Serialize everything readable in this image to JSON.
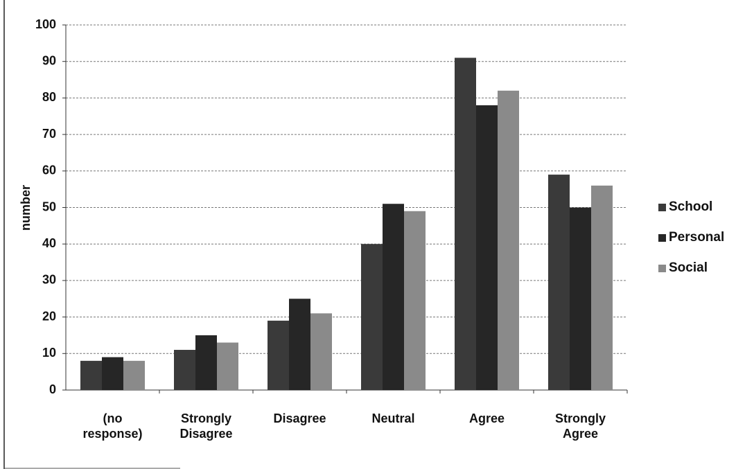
{
  "chart_data": {
    "type": "bar",
    "y_label": "number",
    "categories": [
      "(no response)",
      "Strongly Disagree",
      "Disagree",
      "Neutral",
      "Agree",
      "Strongly Agree"
    ],
    "series": [
      {
        "name": "School",
        "color": "#3a3a3a",
        "values": [
          8,
          11,
          19,
          40,
          91,
          59
        ]
      },
      {
        "name": "Personal",
        "color": "#262626",
        "values": [
          9,
          15,
          25,
          51,
          78,
          50
        ]
      },
      {
        "name": "Social",
        "color": "#8a8a8a",
        "values": [
          8,
          13,
          21,
          49,
          82,
          56
        ]
      }
    ],
    "ylim": [
      0,
      100
    ],
    "yticks": [
      0,
      10,
      20,
      30,
      40,
      50,
      60,
      70,
      80,
      90,
      100
    ],
    "grid": true,
    "legend": "right"
  }
}
